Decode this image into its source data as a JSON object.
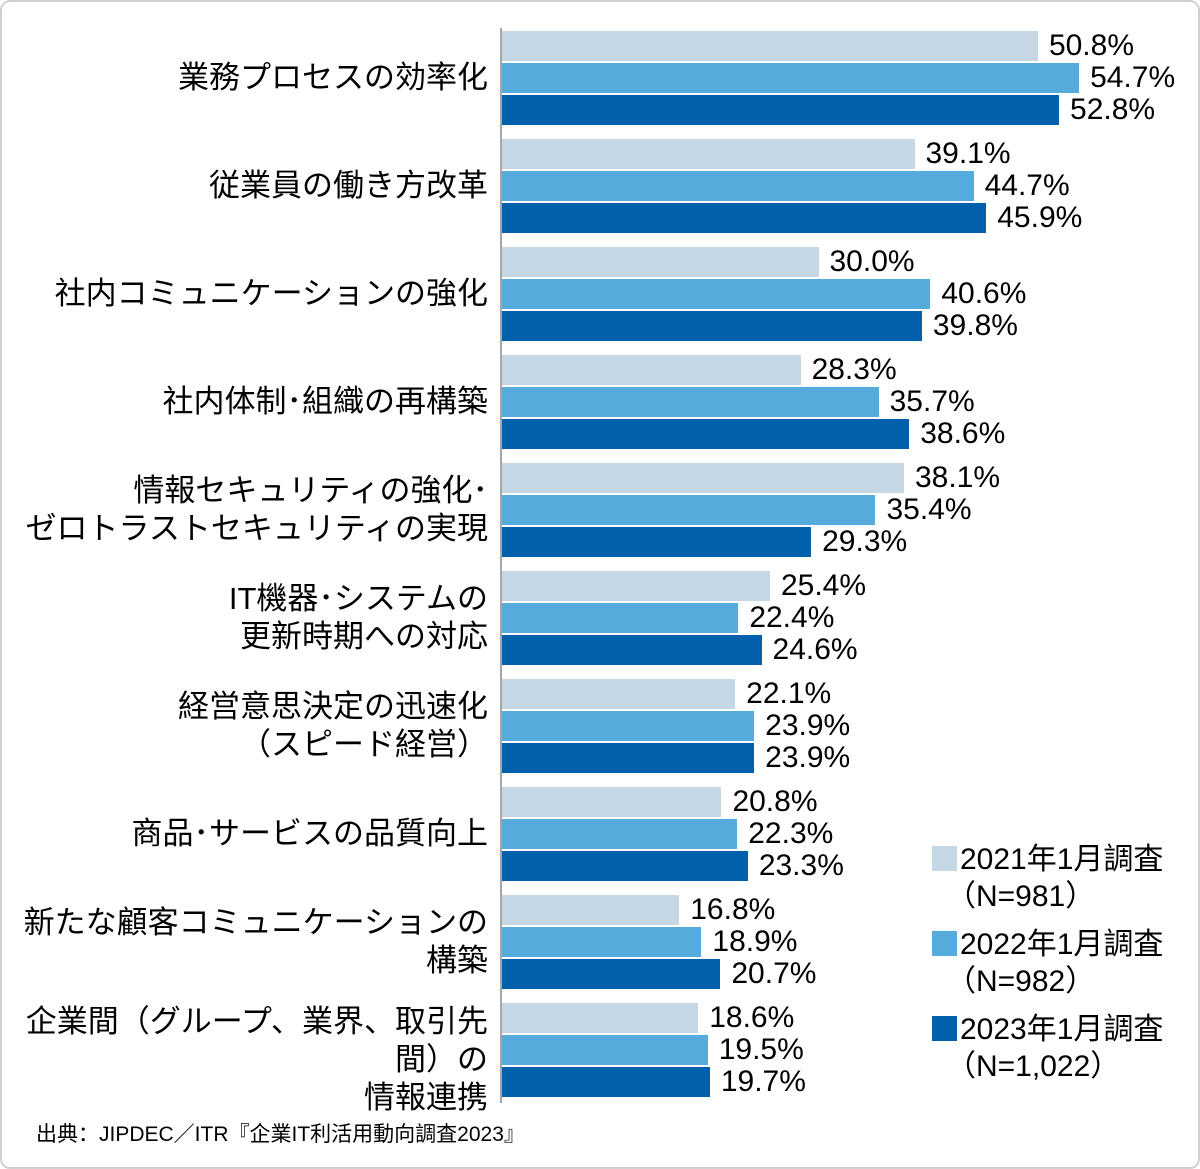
{
  "chart_data": {
    "type": "bar",
    "orientation": "horizontal",
    "unit": "%",
    "title": "",
    "xlabel": "",
    "ylabel": "",
    "xlim": [
      0,
      66
    ],
    "grid": false,
    "value_labels": true,
    "value_label_format": "#0.0%",
    "legend_position": "bottom-right",
    "axis_color": "#a6a6a6",
    "categories": [
      "業務プロセスの効率化",
      "従業員の働き方改革",
      "社内コミュニケーションの強化",
      "社内体制･組織の再構築",
      "情報セキュリティの強化･\nゼロトラストセキュリティの実現",
      "IT機器･システムの\n更新時期への対応",
      "経営意思決定の迅速化\n（スピード経営）",
      "商品･サービスの品質向上",
      "新たな顧客コミュニケーションの構築",
      "企業間（グループ、業界、取引先間）の\n情報連携"
    ],
    "series": [
      {
        "name": "2021年1月調査（N=981）",
        "color": "#c5d6e4",
        "values": [
          50.8,
          39.1,
          30.0,
          28.3,
          38.1,
          25.4,
          22.1,
          20.8,
          16.8,
          18.6
        ]
      },
      {
        "name": "2022年1月調査（N=982）",
        "color": "#55abdb",
        "values": [
          54.7,
          44.7,
          40.6,
          35.7,
          35.4,
          22.4,
          23.9,
          22.3,
          18.9,
          19.5
        ]
      },
      {
        "name": "2023年1月調査（N=1,022）",
        "color": "#0060ac",
        "values": [
          52.8,
          45.9,
          39.8,
          38.6,
          29.3,
          24.6,
          23.9,
          23.3,
          20.7,
          19.7
        ]
      }
    ]
  },
  "legend": {
    "items": [
      {
        "line1": "2021年1月調査",
        "line2": "（N=981）"
      },
      {
        "line1": "2022年1月調査",
        "line2": "（N=982）"
      },
      {
        "line1": "2023年1月調査",
        "line2": "（N=1,022）"
      }
    ]
  },
  "footer": {
    "source": "出典：JIPDEC／ITR『企業IT利活用動向調査2023』"
  }
}
